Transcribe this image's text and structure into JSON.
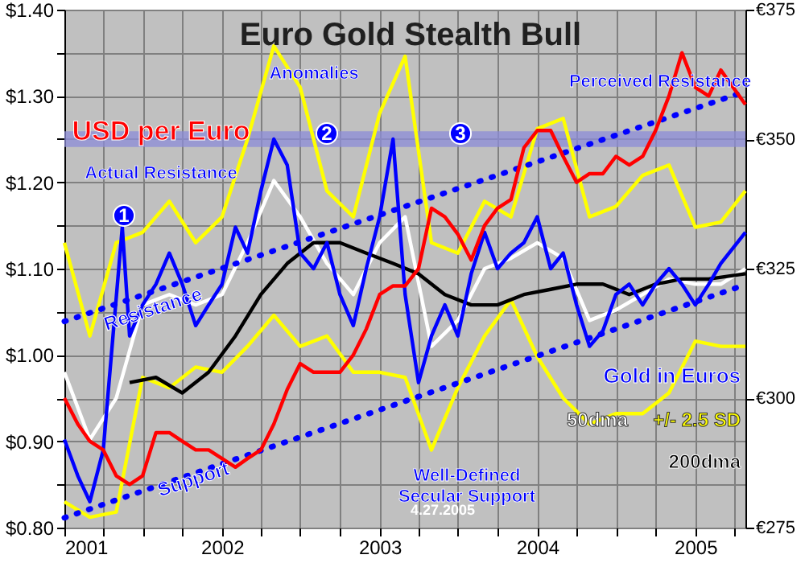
{
  "chart_data": {
    "type": "line",
    "title": "Euro Gold Stealth Bull",
    "xlim": [
      "2001-01-01",
      "2005-04-27"
    ],
    "xticks": [
      {
        "value": "2001-01-01",
        "label": "2001"
      },
      {
        "value": "2001-04-01",
        "label": null
      },
      {
        "value": "2001-07-01",
        "label": null
      },
      {
        "value": "2001-10-01",
        "label": null
      },
      {
        "value": "2002-01-01",
        "label": "2002"
      },
      {
        "value": "2002-04-01",
        "label": null
      },
      {
        "value": "2002-07-01",
        "label": null
      },
      {
        "value": "2002-10-01",
        "label": null
      },
      {
        "value": "2003-01-01",
        "label": "2003"
      },
      {
        "value": "2003-04-01",
        "label": null
      },
      {
        "value": "2003-07-01",
        "label": null
      },
      {
        "value": "2003-10-01",
        "label": null
      },
      {
        "value": "2004-01-01",
        "label": "2004"
      },
      {
        "value": "2004-04-01",
        "label": null
      },
      {
        "value": "2004-07-01",
        "label": null
      },
      {
        "value": "2004-10-01",
        "label": null
      },
      {
        "value": "2005-01-01",
        "label": "2005"
      },
      {
        "value": "2005-04-01",
        "label": null
      }
    ],
    "ylim": [
      0.8,
      1.4
    ],
    "yticks": [
      {
        "value": 0.8,
        "label": "$0.80"
      },
      {
        "value": 0.85,
        "label": null
      },
      {
        "value": 0.9,
        "label": "$0.90"
      },
      {
        "value": 0.95,
        "label": null
      },
      {
        "value": 1.0,
        "label": "$1.00"
      },
      {
        "value": 1.05,
        "label": null
      },
      {
        "value": 1.1,
        "label": "$1.10"
      },
      {
        "value": 1.15,
        "label": null
      },
      {
        "value": 1.2,
        "label": "$1.20"
      },
      {
        "value": 1.25,
        "label": null
      },
      {
        "value": 1.3,
        "label": "$1.30"
      },
      {
        "value": 1.35,
        "label": null
      },
      {
        "value": 1.4,
        "label": "$1.40"
      }
    ],
    "y2lim": [
      275,
      375
    ],
    "y2ticks": [
      {
        "value": 275,
        "label": "€275"
      },
      {
        "value": 300,
        "label": "€300"
      },
      {
        "value": 325,
        "label": "€325"
      },
      {
        "value": 350,
        "label": "€350"
      },
      {
        "value": 375,
        "label": "€375"
      }
    ],
    "grid": true,
    "legend": false,
    "marker": "none",
    "bands": [
      {
        "axis": "y2",
        "from": 348.5,
        "to": 351.5,
        "label": "Perceived Resistance",
        "color": "#8c8cd8"
      }
    ],
    "annotations": [
      "Anomalies",
      "Actual Resistance",
      "1",
      "2",
      "3",
      "Well-Defined Secular Support",
      "4.27.2005"
    ],
    "series": [
      {
        "name": "USD per Euro",
        "color": "#ff0000",
        "x": [
          "2001-01-01",
          "2001-02-01",
          "2001-03-01",
          "2001-04-01",
          "2001-05-01",
          "2001-06-01",
          "2001-07-01",
          "2001-08-01",
          "2001-09-01",
          "2001-10-01",
          "2001-11-01",
          "2001-12-01",
          "2002-01-01",
          "2002-02-01",
          "2002-03-01",
          "2002-04-01",
          "2002-05-01",
          "2002-06-01",
          "2002-07-01",
          "2002-08-01",
          "2002-09-01",
          "2002-10-01",
          "2002-11-01",
          "2002-12-01",
          "2003-01-01",
          "2003-02-01",
          "2003-03-01",
          "2003-04-01",
          "2003-05-01",
          "2003-06-01",
          "2003-07-01",
          "2003-08-01",
          "2003-09-01",
          "2003-10-01",
          "2003-11-01",
          "2003-12-01",
          "2004-01-01",
          "2004-02-01",
          "2004-03-01",
          "2004-04-01",
          "2004-05-01",
          "2004-06-01",
          "2004-07-01",
          "2004-08-01",
          "2004-09-01",
          "2004-10-01",
          "2004-11-01",
          "2004-12-01",
          "2005-01-01",
          "2005-02-01",
          "2005-03-01",
          "2005-04-27"
        ],
        "values": [
          0.95,
          0.92,
          0.9,
          0.89,
          0.86,
          0.85,
          0.86,
          0.91,
          0.91,
          0.9,
          0.89,
          0.89,
          0.88,
          0.87,
          0.88,
          0.89,
          0.92,
          0.96,
          0.99,
          0.98,
          0.98,
          0.98,
          1.0,
          1.03,
          1.07,
          1.08,
          1.08,
          1.1,
          1.17,
          1.16,
          1.14,
          1.11,
          1.15,
          1.17,
          1.18,
          1.24,
          1.26,
          1.26,
          1.23,
          1.2,
          1.21,
          1.21,
          1.23,
          1.22,
          1.23,
          1.26,
          1.3,
          1.35,
          1.31,
          1.3,
          1.33,
          1.29
        ]
      },
      {
        "name": "+/- 2.5 SD",
        "color": "#ffff00",
        "axis": "y2",
        "x": [
          "2001-01-01",
          "2001-03-01",
          "2001-05-01",
          "2001-07-01",
          "2001-09-01",
          "2001-11-01",
          "2002-01-01",
          "2002-03-01",
          "2002-05-01",
          "2002-07-01",
          "2002-09-01",
          "2002-11-01",
          "2003-01-01",
          "2003-03-01",
          "2003-05-01",
          "2003-07-01",
          "2003-09-01",
          "2003-11-01",
          "2004-01-01",
          "2004-03-01",
          "2004-05-01",
          "2004-07-01",
          "2004-09-01",
          "2004-11-01",
          "2005-01-01",
          "2005-03-01",
          "2005-04-27"
        ],
        "values": [
          330,
          312,
          330,
          332,
          338,
          330,
          335,
          350,
          368,
          360,
          340,
          335,
          355,
          366,
          330,
          328,
          338,
          335,
          352,
          354,
          335,
          337,
          343,
          345,
          333,
          334,
          340
        ]
      },
      {
        "color": "#ffff00",
        "axis": "y2",
        "x": [
          "2001-01-01",
          "2001-03-01",
          "2001-05-01",
          "2001-07-01",
          "2001-09-01",
          "2001-11-01",
          "2002-01-01",
          "2002-03-01",
          "2002-05-01",
          "2002-07-01",
          "2002-09-01",
          "2002-11-01",
          "2003-01-01",
          "2003-03-01",
          "2003-05-01",
          "2003-07-01",
          "2003-09-01",
          "2003-11-01",
          "2004-01-01",
          "2004-03-01",
          "2004-05-01",
          "2004-07-01",
          "2004-09-01",
          "2004-11-01",
          "2005-01-01",
          "2005-03-01",
          "2005-04-27"
        ],
        "values": [
          280,
          277,
          278,
          304,
          302,
          306,
          305,
          310,
          316,
          310,
          312,
          305,
          305,
          304,
          290,
          302,
          312,
          319,
          308,
          300,
          295,
          297,
          297,
          301,
          311,
          310,
          310
        ]
      },
      {
        "name": "50dma",
        "color": "#ffffff",
        "axis": "y2",
        "x": [
          "2001-01-01",
          "2001-03-01",
          "2001-05-01",
          "2001-07-01",
          "2001-09-01",
          "2001-11-01",
          "2002-01-01",
          "2002-03-01",
          "2002-05-01",
          "2002-07-01",
          "2002-09-01",
          "2002-11-01",
          "2003-01-01",
          "2003-03-01",
          "2003-05-01",
          "2003-07-01",
          "2003-09-01",
          "2003-11-01",
          "2004-01-01",
          "2004-03-01",
          "2004-05-01",
          "2004-07-01",
          "2004-09-01",
          "2004-11-01",
          "2005-01-01",
          "2005-03-01",
          "2005-04-27"
        ],
        "values": [
          305,
          292,
          300,
          318,
          320,
          318,
          320,
          330,
          342,
          335,
          326,
          320,
          330,
          335,
          310,
          315,
          325,
          327,
          330,
          327,
          315,
          317,
          320,
          323,
          322,
          322,
          325
        ]
      },
      {
        "name": "200dma",
        "color": "#000000",
        "axis": "y2",
        "x": [
          "2001-06-01",
          "2001-08-01",
          "2001-10-01",
          "2001-12-01",
          "2002-02-01",
          "2002-04-01",
          "2002-06-01",
          "2002-08-01",
          "2002-10-01",
          "2002-12-01",
          "2003-02-01",
          "2003-04-01",
          "2003-06-01",
          "2003-08-01",
          "2003-10-01",
          "2003-12-01",
          "2004-02-01",
          "2004-04-01",
          "2004-06-01",
          "2004-08-01",
          "2004-10-01",
          "2004-12-01",
          "2005-02-01",
          "2005-04-27"
        ],
        "values": [
          303,
          304,
          301,
          305,
          312,
          320,
          326,
          330,
          330,
          328,
          326,
          324,
          320,
          318,
          318,
          320,
          321,
          322,
          322,
          320,
          322,
          323,
          323,
          324
        ]
      },
      {
        "name": "Gold in Euros",
        "color": "#0000ff",
        "axis": "y2",
        "x": [
          "2001-01-01",
          "2001-02-01",
          "2001-03-01",
          "2001-04-01",
          "2001-05-15",
          "2001-06-01",
          "2001-07-01",
          "2001-08-01",
          "2001-09-01",
          "2001-10-01",
          "2001-11-01",
          "2001-12-01",
          "2002-01-01",
          "2002-02-01",
          "2002-03-01",
          "2002-04-01",
          "2002-05-01",
          "2002-06-01",
          "2002-07-01",
          "2002-08-01",
          "2002-09-01",
          "2002-10-01",
          "2002-11-01",
          "2002-12-01",
          "2003-01-01",
          "2003-02-01",
          "2003-03-01",
          "2003-04-01",
          "2003-05-01",
          "2003-06-01",
          "2003-07-01",
          "2003-08-01",
          "2003-09-01",
          "2003-10-01",
          "2003-11-01",
          "2003-12-01",
          "2004-01-01",
          "2004-02-01",
          "2004-03-01",
          "2004-04-01",
          "2004-05-01",
          "2004-06-01",
          "2004-07-01",
          "2004-08-01",
          "2004-09-01",
          "2004-10-01",
          "2004-11-01",
          "2004-12-01",
          "2005-01-01",
          "2005-02-01",
          "2005-03-01",
          "2005-04-27"
        ],
        "values": [
          292,
          285,
          280,
          290,
          333,
          312,
          318,
          322,
          328,
          322,
          314,
          318,
          322,
          333,
          328,
          340,
          350,
          345,
          328,
          325,
          330,
          320,
          314,
          325,
          335,
          350,
          320,
          303,
          312,
          318,
          312,
          324,
          332,
          325,
          328,
          330,
          335,
          325,
          328,
          318,
          310,
          313,
          320,
          322,
          318,
          322,
          325,
          322,
          318,
          322,
          326,
          332
        ]
      },
      {
        "name": "Resistance",
        "color": "#0000ff",
        "axis": "y2",
        "line_style": "dotted",
        "x": [
          "2001-01-01",
          "2005-04-27"
        ],
        "values": [
          314.8,
          359.2
        ]
      },
      {
        "name": "Support",
        "color": "#0000ff",
        "axis": "y2",
        "line_style": "dotted",
        "x": [
          "2001-01-01",
          "2005-04-27"
        ],
        "values": [
          276.9,
          321.9
        ]
      }
    ]
  }
}
